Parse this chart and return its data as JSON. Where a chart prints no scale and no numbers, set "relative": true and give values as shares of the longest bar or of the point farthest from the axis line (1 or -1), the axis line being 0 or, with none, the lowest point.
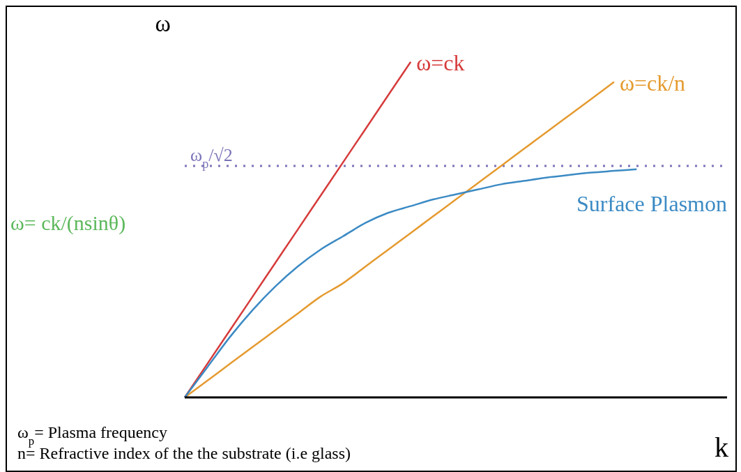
{
  "chart_data": {
    "type": "line",
    "relative": true,
    "xlabel": "k",
    "ylabel": "ω",
    "categories": [
      null,
      null,
      null,
      null,
      null,
      null,
      null,
      null,
      null,
      null,
      null,
      null,
      null,
      null,
      null,
      null,
      null,
      null,
      null,
      null,
      null,
      null,
      null,
      null,
      null
    ],
    "series": [
      {
        "name": "ω=ck",
        "color": "#d63b3b",
        "values": [
          0,
          0.1,
          0.2,
          0.3,
          0.4,
          0.5,
          0.6,
          0.7,
          0.8,
          0.9,
          1,
          null,
          null,
          null,
          null,
          null,
          null,
          null,
          null,
          null,
          null,
          null,
          null,
          null,
          null
        ]
      },
      {
        "name": "ω=ck/n",
        "color": "#e59a2f",
        "values": [
          0,
          0.05,
          0.1,
          0.15,
          0.2,
          0.25,
          0.3,
          0.34,
          0.39,
          0.44,
          0.49,
          0.54,
          0.59,
          0.64,
          0.69,
          0.74,
          0.79,
          0.84,
          0.89,
          0.94,
          null,
          null,
          null,
          null,
          null
        ]
      },
      {
        "name": "Surface Plasmon",
        "color": "#3b8ac4",
        "values": [
          0,
          0.09,
          0.18,
          0.26,
          0.33,
          0.39,
          0.44,
          0.48,
          0.52,
          0.55,
          0.57,
          0.59,
          0.605,
          0.62,
          0.635,
          0.645,
          0.655,
          0.663,
          0.67,
          0.675,
          0.68,
          null,
          null,
          null,
          null
        ]
      }
    ],
    "ref_lines": [
      {
        "axis": "y",
        "value": 0.69,
        "label": "ω$_{p}$/√2",
        "color": "#7b74b8",
        "line_style": "dotted"
      }
    ],
    "annotations": [
      "ω= ck/(nsinθ)",
      "ω$_{p}$= Plasma frequency",
      "n= Refractive index of the the substrate (i.e glass)"
    ],
    "grid": false,
    "legend": false,
    "marker": "none",
    "line_style": "solid"
  }
}
